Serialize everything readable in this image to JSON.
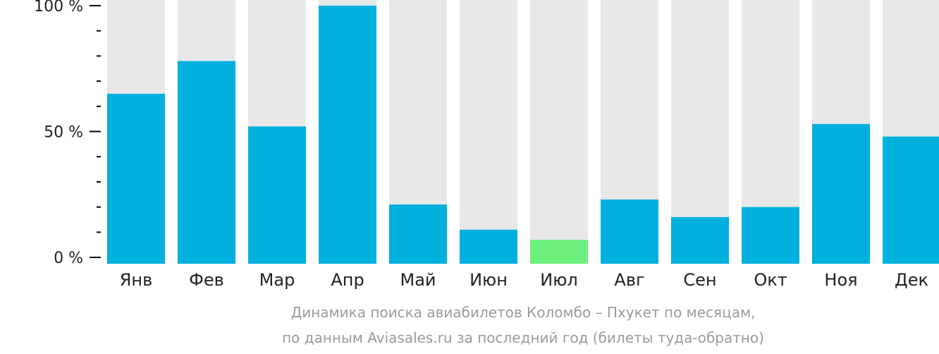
{
  "chart_data": {
    "type": "bar",
    "categories": [
      "Янв",
      "Фев",
      "Мар",
      "Апр",
      "Май",
      "Июн",
      "Июл",
      "Авг",
      "Сен",
      "Окт",
      "Ноя",
      "Дек"
    ],
    "values": [
      65,
      78,
      52,
      100,
      21,
      11,
      7,
      23,
      16,
      20,
      53,
      48
    ],
    "highlight_index": 6,
    "ylim": [
      0,
      100
    ],
    "yticks": [
      "0 %",
      "50 %",
      "100 %"
    ],
    "title": "Динамика поиска авиабилетов Коломбо – Пхукет по месяцам,",
    "subtitle": "по данным Aviasales.ru за последний год (билеты туда-обратно)",
    "colors": {
      "bar": "#00b0dd",
      "highlight": "#6ef07f",
      "background_bar": "#e8e8e8",
      "axis": "#000000",
      "tick_label": "#222222"
    }
  }
}
